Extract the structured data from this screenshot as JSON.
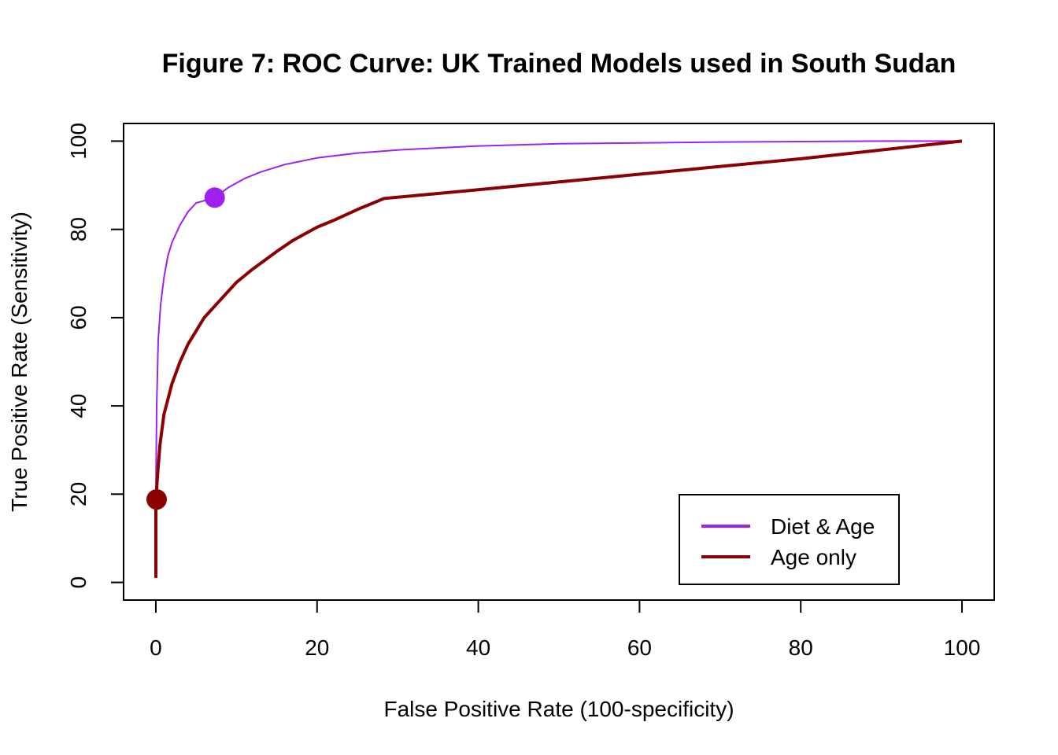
{
  "chart_data": {
    "type": "line",
    "title": "Figure 7: ROC Curve: UK Trained Models used in South Sudan",
    "xlabel": "False Positive Rate (100-specificity)",
    "ylabel": "True Positive Rate (Sensitivity)",
    "xlim": [
      -4,
      104
    ],
    "ylim": [
      -4,
      104
    ],
    "x_ticks": [
      0,
      20,
      40,
      60,
      80,
      100
    ],
    "y_ticks": [
      0,
      20,
      40,
      60,
      80,
      100
    ],
    "grid": false,
    "legend_position": "bottom-right",
    "series": [
      {
        "name": "Diet & Age",
        "color": "#A020F0",
        "line_width": 2,
        "x": [
          0,
          0.1,
          0.3,
          0.6,
          1,
          1.5,
          2,
          3,
          4,
          5,
          6,
          7.3,
          9,
          11,
          13,
          16,
          20,
          25,
          30,
          40,
          50,
          60,
          70,
          80,
          90,
          100
        ],
        "y": [
          19,
          40,
          55,
          63,
          69,
          74,
          77,
          81,
          84,
          86,
          86.5,
          87.2,
          89.5,
          91.5,
          93,
          94.7,
          96.2,
          97.3,
          98,
          98.9,
          99.4,
          99.6,
          99.8,
          99.9,
          100,
          100
        ]
      },
      {
        "name": "Age only",
        "color": "#8B0000",
        "line_width": 4,
        "x": [
          0,
          0,
          0.2,
          0.5,
          1,
          2,
          3,
          4,
          5,
          6,
          8,
          10,
          12,
          15,
          17,
          20,
          22,
          25,
          28.3,
          40,
          60,
          80,
          100
        ],
        "y": [
          1,
          18,
          24,
          31,
          38,
          45,
          50,
          54,
          57,
          60,
          64,
          68,
          71,
          75,
          77.5,
          80.5,
          82,
          84.5,
          87,
          89,
          92.5,
          96,
          100
        ]
      }
    ],
    "highlight_points": [
      {
        "series": "Diet & Age",
        "x": 7.3,
        "y": 87.2,
        "color": "#A020F0"
      },
      {
        "series": "Age only",
        "x": 0.1,
        "y": 18.8,
        "color": "#8B0000"
      }
    ]
  }
}
